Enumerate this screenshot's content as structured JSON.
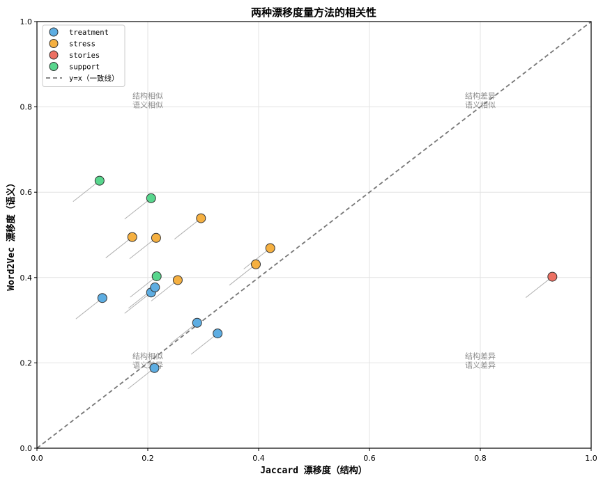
{
  "chart_data": {
    "type": "scatter",
    "title": "两种漂移度量方法的相关性",
    "xlabel": "Jaccard 漂移度（结构）",
    "ylabel": "Word2Vec 漂移度（语义）",
    "xlim": [
      0.0,
      1.0
    ],
    "ylim": [
      0.0,
      1.0
    ],
    "x_ticks": [
      "0.0",
      "0.2",
      "0.4",
      "0.6",
      "0.8",
      "1.0"
    ],
    "y_ticks": [
      "0.0",
      "0.2",
      "0.4",
      "0.6",
      "0.8",
      "1.0"
    ],
    "grid": true,
    "legend_position": "top-left",
    "series": [
      {
        "name": "treatment",
        "color": "#5DADE2",
        "points": [
          [
            0.118,
            0.352
          ],
          [
            0.206,
            0.365
          ],
          [
            0.213,
            0.377
          ],
          [
            0.289,
            0.294
          ],
          [
            0.326,
            0.269
          ],
          [
            0.212,
            0.188
          ]
        ]
      },
      {
        "name": "stress",
        "color": "#F5B041",
        "points": [
          [
            0.172,
            0.495
          ],
          [
            0.215,
            0.493
          ],
          [
            0.296,
            0.539
          ],
          [
            0.254,
            0.394
          ],
          [
            0.421,
            0.469
          ],
          [
            0.395,
            0.431
          ]
        ]
      },
      {
        "name": "stories",
        "color": "#EC7063",
        "points": [
          [
            0.93,
            0.402
          ]
        ]
      },
      {
        "name": "support",
        "color": "#58D68D",
        "points": [
          [
            0.113,
            0.627
          ],
          [
            0.206,
            0.586
          ],
          [
            0.216,
            0.403
          ]
        ]
      }
    ],
    "reference_line": {
      "name": "y=x（一致线）",
      "from": [
        0,
        0
      ],
      "to": [
        1,
        1
      ],
      "color": "#777777"
    },
    "quadrant_labels": [
      {
        "x": 0.2,
        "y": 0.82,
        "lines": [
          "结构相似",
          "语义相似"
        ]
      },
      {
        "x": 0.8,
        "y": 0.82,
        "lines": [
          "结构差异",
          "语义相似"
        ]
      },
      {
        "x": 0.2,
        "y": 0.21,
        "lines": [
          "结构相似",
          "语义差异"
        ]
      },
      {
        "x": 0.8,
        "y": 0.21,
        "lines": [
          "结构差异",
          "语义差异"
        ]
      }
    ]
  }
}
